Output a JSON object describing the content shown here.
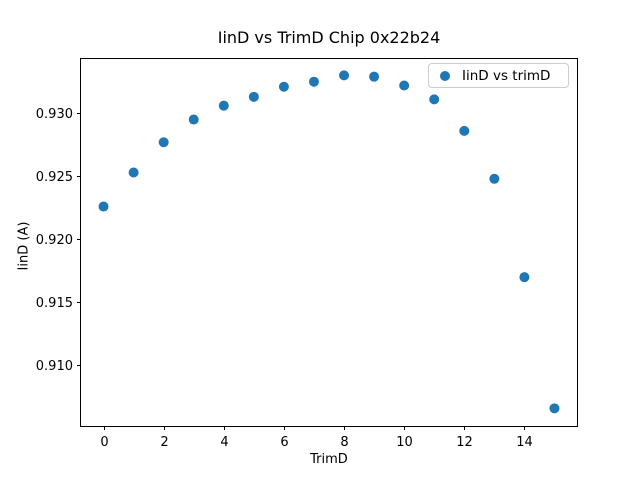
{
  "chart_data": {
    "type": "scatter",
    "title": "IinD vs TrimD Chip 0x22b24",
    "xlabel": "TrimD",
    "ylabel": "IinD (A)",
    "series": [
      {
        "name": "IinD vs trimD",
        "color": "#1f77b4",
        "x": [
          0,
          1,
          2,
          3,
          4,
          5,
          6,
          7,
          8,
          9,
          10,
          11,
          12,
          13,
          14,
          15
        ],
        "y": [
          0.9226,
          0.9253,
          0.9277,
          0.9295,
          0.9306,
          0.9313,
          0.9321,
          0.9325,
          0.933,
          0.9329,
          0.9322,
          0.9311,
          0.9286,
          0.9248,
          0.917,
          0.9066
        ]
      }
    ],
    "xlim": [
      -0.75,
      15.75
    ],
    "ylim": [
      0.9052,
      0.9343
    ],
    "xticks": [
      0,
      2,
      4,
      6,
      8,
      10,
      12,
      14
    ],
    "yticks": [
      0.91,
      0.915,
      0.92,
      0.925,
      0.93
    ],
    "ytick_decimals": 3,
    "legend_position": "upper right",
    "grid": false,
    "background_color": "#ffffff",
    "axis_color": "#000000"
  }
}
